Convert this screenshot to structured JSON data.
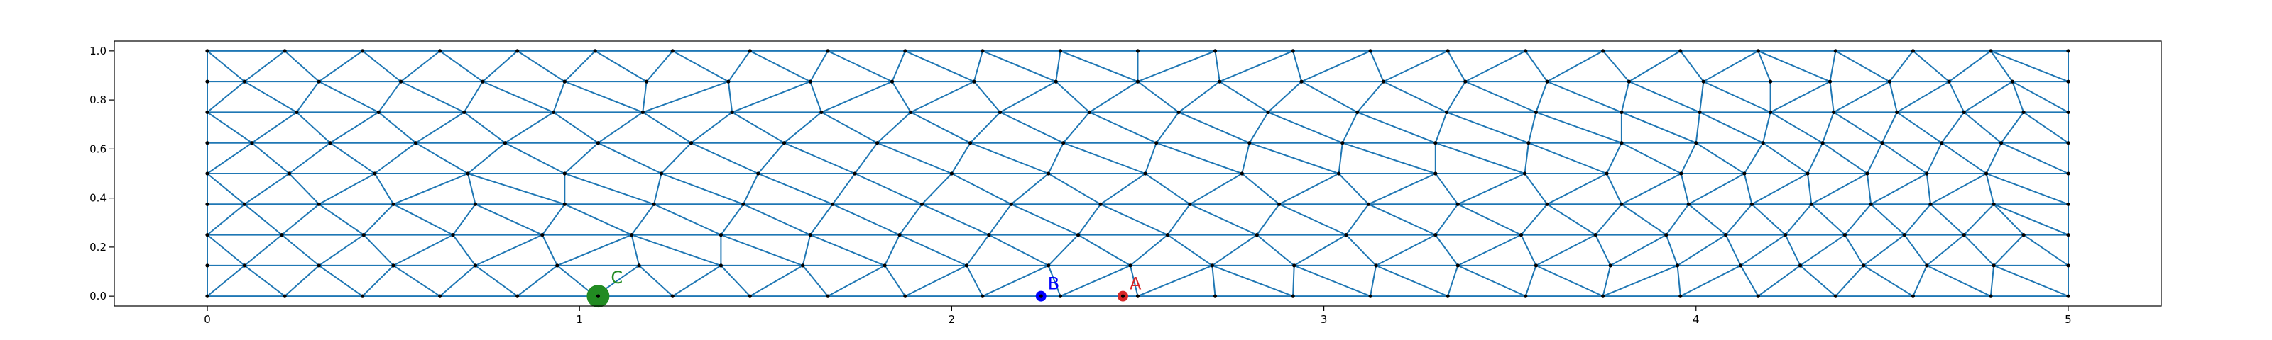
{
  "chart_data": {
    "type": "scatter",
    "title": "",
    "xlabel": "",
    "ylabel": "",
    "xlim": [
      -0.25,
      5.25
    ],
    "ylim": [
      -0.04,
      1.04
    ],
    "x_ticks": [
      "0",
      "1",
      "2",
      "3",
      "4",
      "5"
    ],
    "y_ticks": [
      "0.0",
      "0.2",
      "0.4",
      "0.6",
      "0.8",
      "1.0"
    ],
    "grid": false,
    "mesh_color": "#1f77b4",
    "node_color": "#000000",
    "mesh": {
      "boundary_x": [
        0,
        0.208,
        0.417,
        0.625,
        0.833,
        1.042,
        1.25,
        1.458,
        1.667,
        1.875,
        2.083,
        2.292,
        2.5,
        2.708,
        2.917,
        3.125,
        3.333,
        3.542,
        3.75,
        3.958,
        4.167,
        4.375,
        4.583,
        4.792,
        5
      ],
      "side_y": [
        0,
        0.125,
        0.25,
        0.375,
        0.5,
        0.625,
        0.75,
        0.875,
        1
      ],
      "interior_rows": [
        {
          "y": 0.125,
          "x": [
            0.1,
            0.3,
            0.5,
            0.72,
            0.94,
            1.16,
            1.38,
            1.6,
            1.82,
            2.04,
            2.26,
            2.48,
            2.7,
            2.92,
            3.14,
            3.36,
            3.57,
            3.77,
            3.95,
            4.12,
            4.28,
            4.45,
            4.62,
            4.8
          ]
        },
        {
          "y": 0.25,
          "x": [
            0.2,
            0.42,
            0.66,
            0.9,
            1.14,
            1.38,
            1.62,
            1.86,
            2.1,
            2.34,
            2.58,
            2.82,
            3.06,
            3.3,
            3.53,
            3.73,
            3.92,
            4.08,
            4.24,
            4.4,
            4.56,
            4.72,
            4.88
          ]
        },
        {
          "y": 0.375,
          "x": [
            0.1,
            0.3,
            0.5,
            0.72,
            0.96,
            1.2,
            1.44,
            1.68,
            1.92,
            2.16,
            2.4,
            2.64,
            2.88,
            3.12,
            3.36,
            3.6,
            3.8,
            3.98,
            4.15,
            4.31,
            4.47,
            4.63,
            4.8
          ]
        },
        {
          "y": 0.5,
          "x": [
            0.22,
            0.45,
            0.7,
            0.96,
            1.22,
            1.48,
            1.74,
            2.0,
            2.26,
            2.52,
            2.78,
            3.04,
            3.3,
            3.54,
            3.76,
            3.96,
            4.13,
            4.3,
            4.46,
            4.62,
            4.78
          ]
        },
        {
          "y": 0.625,
          "x": [
            0.12,
            0.33,
            0.56,
            0.8,
            1.05,
            1.3,
            1.55,
            1.8,
            2.05,
            2.3,
            2.55,
            2.8,
            3.05,
            3.3,
            3.55,
            3.8,
            4.0,
            4.18,
            4.34,
            4.5,
            4.66,
            4.82
          ]
        },
        {
          "y": 0.75,
          "x": [
            0.24,
            0.46,
            0.69,
            0.93,
            1.17,
            1.41,
            1.65,
            1.89,
            2.13,
            2.37,
            2.61,
            2.85,
            3.09,
            3.33,
            3.57,
            3.8,
            4.01,
            4.2,
            4.37,
            4.54,
            4.72,
            4.88
          ]
        },
        {
          "y": 0.875,
          "x": [
            0.1,
            0.3,
            0.52,
            0.74,
            0.96,
            1.18,
            1.4,
            1.62,
            1.84,
            2.06,
            2.28,
            2.5,
            2.72,
            2.94,
            3.16,
            3.38,
            3.6,
            3.82,
            4.02,
            4.2,
            4.36,
            4.52,
            4.68,
            4.85
          ]
        }
      ]
    },
    "annotations": [
      {
        "label": "A",
        "x": 2.46,
        "y": 0.0,
        "color": "#d62728",
        "marker_size": 15
      },
      {
        "label": "B",
        "x": 2.24,
        "y": 0.0,
        "color": "#0000ff",
        "marker_size": 15
      },
      {
        "label": "C",
        "x": 1.05,
        "y": 0.0,
        "color": "#228b22",
        "marker_size": 32
      }
    ]
  }
}
